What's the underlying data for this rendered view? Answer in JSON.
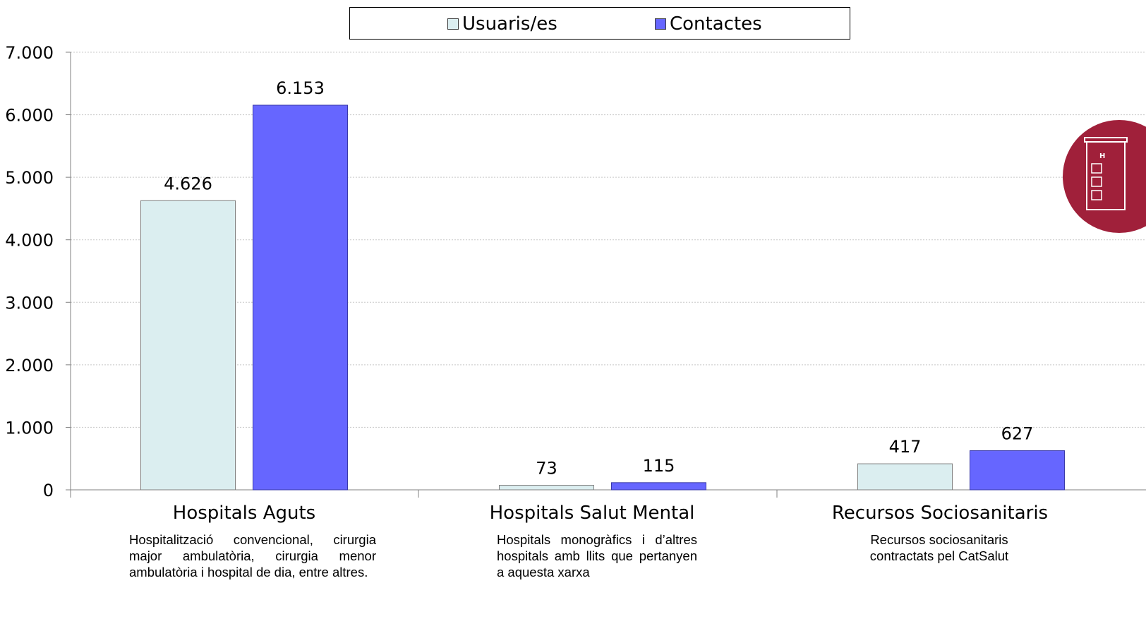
{
  "chart_data": {
    "type": "bar",
    "title": "",
    "xlabel": "",
    "ylabel": "",
    "categories": [
      "Hospitals Aguts",
      "Hospitals Salut Mental",
      "Recursos Sociosanitaris"
    ],
    "category_descriptions": [
      "Hospitalització convencional, cirurgia major ambulatòria, cirurgia menor ambulatòria i hospital de dia, entre altres.",
      "Hospitals monogràfics i d’altres hospitals amb llits que pertanyen a aquesta xarxa",
      "Recursos sociosanitaris contractats pel CatSalut"
    ],
    "series": [
      {
        "name": "Usuaris/es",
        "values": [
          4626,
          73,
          417
        ],
        "labels": [
          "4.626",
          "73",
          "417"
        ],
        "color": "#dbeef0"
      },
      {
        "name": "Contactes",
        "values": [
          6153,
          115,
          627
        ],
        "labels": [
          "6.153",
          "115",
          "627"
        ],
        "color": "#6666ff"
      }
    ],
    "ylim": [
      0,
      7000
    ],
    "yticks": [
      0,
      1000,
      2000,
      3000,
      4000,
      5000,
      6000,
      7000
    ],
    "ytick_labels": [
      "0",
      "1.000",
      "2.000",
      "3.000",
      "4.000",
      "5.000",
      "6.000",
      "7.000"
    ],
    "grid": true,
    "legend_position": "top"
  },
  "legend": {
    "items": [
      "Usuaris/es",
      "Contactes"
    ]
  },
  "logo": {
    "icon": "hospital-icon",
    "color": "#a0203a"
  }
}
